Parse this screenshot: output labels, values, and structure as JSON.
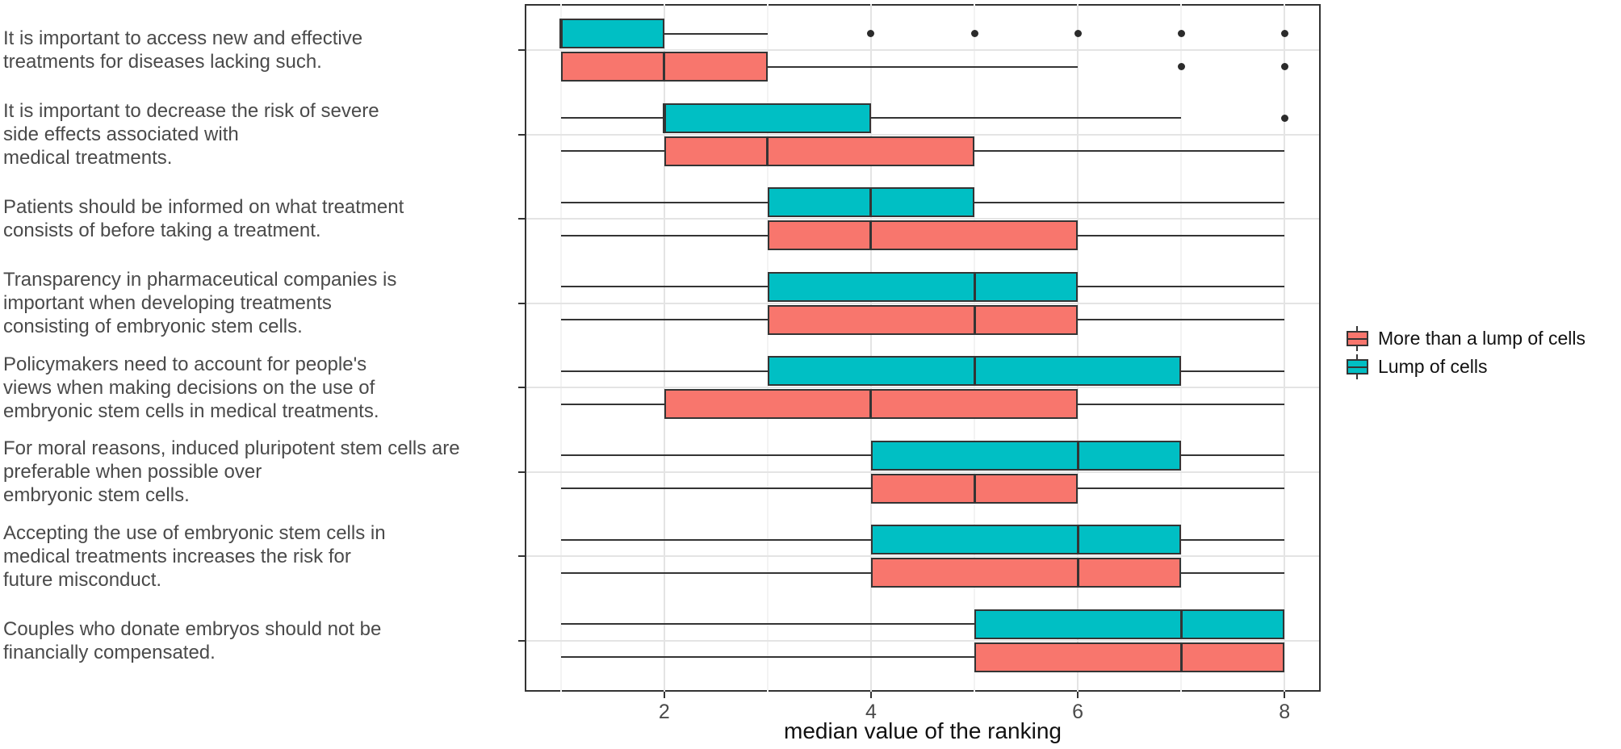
{
  "chart_data": {
    "type": "boxplot",
    "orientation": "horizontal",
    "title": "",
    "xlabel": "median value of the ranking",
    "ylabel": "",
    "x_range": [
      0.65,
      8.35
    ],
    "x_ticks": [
      2,
      4,
      6,
      8
    ],
    "grid": {
      "on": true,
      "major_x": [
        2,
        4,
        6,
        8
      ],
      "minor_x": [
        1,
        3,
        5,
        7
      ]
    },
    "legend_position": "right",
    "legend": [
      {
        "series": "more",
        "label": "More than a lump of cells",
        "color": "#F8766D"
      },
      {
        "series": "lump",
        "label": "Lump of cells",
        "color": "#00BFC4"
      }
    ],
    "colors": {
      "more": "#F8766D",
      "lump": "#00BFC4",
      "stroke": "#343434",
      "grid_major": "#e4e4e4",
      "grid_minor": "#f3f3f3",
      "panel_border": "#333333",
      "label_text": "#4a4a4a",
      "axis_text": "#111111"
    },
    "categories": [
      {
        "label": "It is important to access new and effective\ntreatments for diseases lacking such.",
        "lump": {
          "whisker_low": 1,
          "q1": 1,
          "median": 1,
          "q3": 2,
          "whisker_high": 3,
          "outliers": [
            4,
            5,
            6,
            7,
            8
          ]
        },
        "more": {
          "whisker_low": 1,
          "q1": 1,
          "median": 2,
          "q3": 3,
          "whisker_high": 6,
          "outliers": [
            7,
            8
          ]
        }
      },
      {
        "label": "It is important to decrease the risk of severe\nside effects associated with\nmedical treatments.",
        "lump": {
          "whisker_low": 1,
          "q1": 2,
          "median": 2,
          "q3": 4,
          "whisker_high": 7,
          "outliers": [
            8
          ]
        },
        "more": {
          "whisker_low": 1,
          "q1": 2,
          "median": 3,
          "q3": 5,
          "whisker_high": 8,
          "outliers": []
        }
      },
      {
        "label": "Patients should be informed on what treatment\nconsists of before taking a treatment.",
        "lump": {
          "whisker_low": 1,
          "q1": 3,
          "median": 4,
          "q3": 5,
          "whisker_high": 8,
          "outliers": []
        },
        "more": {
          "whisker_low": 1,
          "q1": 3,
          "median": 4,
          "q3": 6,
          "whisker_high": 8,
          "outliers": []
        }
      },
      {
        "label": "Transparency in pharmaceutical companies is\nimportant when developing treatments\nconsisting of embryonic stem cells.",
        "lump": {
          "whisker_low": 1,
          "q1": 3,
          "median": 5,
          "q3": 6,
          "whisker_high": 8,
          "outliers": []
        },
        "more": {
          "whisker_low": 1,
          "q1": 3,
          "median": 5,
          "q3": 6,
          "whisker_high": 8,
          "outliers": []
        }
      },
      {
        "label": "Policymakers need to account for people's\nviews when making decisions on the use of\nembryonic stem cells in medical treatments.",
        "lump": {
          "whisker_low": 1,
          "q1": 3,
          "median": 5,
          "q3": 7,
          "whisker_high": 8,
          "outliers": []
        },
        "more": {
          "whisker_low": 1,
          "q1": 2,
          "median": 4,
          "q3": 6,
          "whisker_high": 8,
          "outliers": []
        }
      },
      {
        "label": "For moral reasons, induced pluripotent stem cells are\npreferable when possible over\nembryonic stem cells.",
        "lump": {
          "whisker_low": 1,
          "q1": 4,
          "median": 6,
          "q3": 7,
          "whisker_high": 8,
          "outliers": []
        },
        "more": {
          "whisker_low": 1,
          "q1": 4,
          "median": 5,
          "q3": 6,
          "whisker_high": 8,
          "outliers": []
        }
      },
      {
        "label": "Accepting the use of embryonic stem cells in\nmedical treatments increases the risk for\nfuture misconduct.",
        "lump": {
          "whisker_low": 1,
          "q1": 4,
          "median": 6,
          "q3": 7,
          "whisker_high": 8,
          "outliers": []
        },
        "more": {
          "whisker_low": 1,
          "q1": 4,
          "median": 6,
          "q3": 7,
          "whisker_high": 8,
          "outliers": []
        }
      },
      {
        "label": "Couples who donate embryos should not be\nfinancially compensated.",
        "lump": {
          "whisker_low": 1,
          "q1": 5,
          "median": 7,
          "q3": 8,
          "whisker_high": 8,
          "outliers": []
        },
        "more": {
          "whisker_low": 1,
          "q1": 5,
          "median": 7,
          "q3": 8,
          "whisker_high": 8,
          "outliers": []
        }
      }
    ]
  }
}
